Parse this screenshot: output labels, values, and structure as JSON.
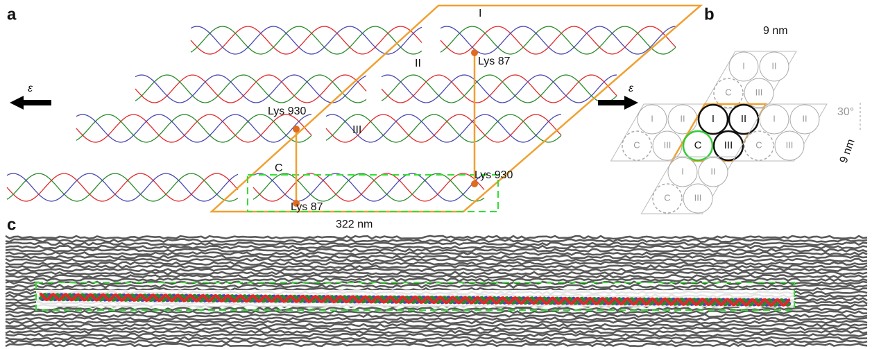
{
  "panel_a": {
    "label": "a",
    "epsilon_left": "ε",
    "epsilon_right": "ε",
    "microfibrils": [
      "I",
      "II",
      "III",
      "C"
    ],
    "residues": [
      "Lys 87",
      "Lys 930",
      "Lys 930",
      "Lys 87"
    ],
    "length": "322 nm"
  },
  "panel_b": {
    "label": "b",
    "width": "9 nm",
    "height": "9 nm",
    "angle": "30°",
    "groups": [
      {
        "labels": [
          "I",
          "II",
          "C",
          "III"
        ]
      },
      {
        "labels": [
          "I",
          "II",
          "C",
          "III"
        ]
      },
      {
        "labels": [
          "I",
          "II",
          "C",
          "III"
        ]
      },
      {
        "labels": [
          "I",
          "II",
          "C",
          "III"
        ]
      },
      {
        "labels": [
          "I",
          "II",
          "C",
          "III"
        ]
      }
    ]
  },
  "panel_c": {
    "label": "c"
  }
}
